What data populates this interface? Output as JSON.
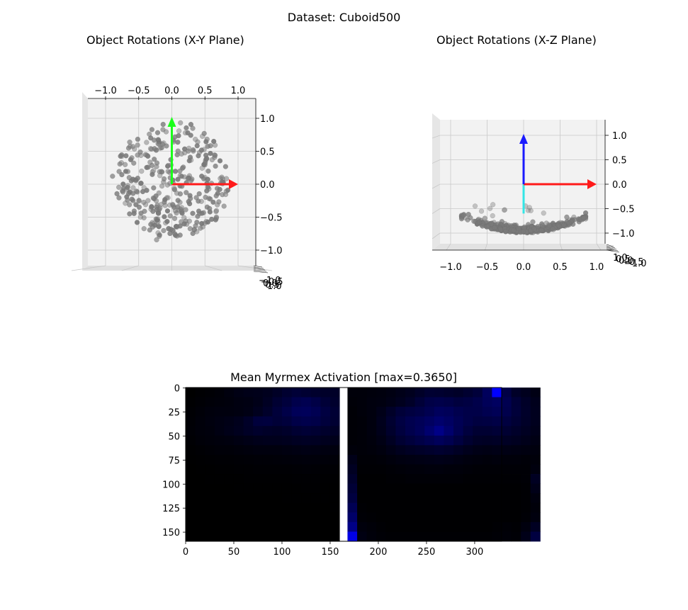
{
  "suptitle": "Dataset: Cuboid500",
  "chart_data": [
    {
      "type": "scatter",
      "title": "Object Rotations (X-Y Plane)",
      "projection": "3d",
      "view": "top (x-y)",
      "x_ticks": [
        "−1.0",
        "−0.5",
        "0.0",
        "0.5",
        "1.0"
      ],
      "y_ticks": [
        "1.0",
        "0.5",
        "0.0",
        "−0.5",
        "−1.0"
      ],
      "z_ticks": [
        "−1.0",
        "−0.5",
        "0.0",
        "0.5",
        "1.0"
      ],
      "xlim": [
        -1.25,
        1.25
      ],
      "ylim": [
        -1.25,
        1.25
      ],
      "point_color": "#7a7a7a",
      "distribution": "rotation endpoints on upper hemisphere, roughly uniform disk of radius 0.85",
      "n_points": 500,
      "arrows": [
        {
          "axis": "x",
          "color": "#ff1a1a",
          "dx": 1.0,
          "dy": 0.0
        },
        {
          "axis": "y",
          "color": "#1aff1a",
          "dx": 0.0,
          "dy": 1.0
        }
      ],
      "grid": true
    },
    {
      "type": "scatter",
      "title": "Object Rotations (X-Z Plane)",
      "projection": "3d",
      "view": "front (x-z)",
      "x_ticks": [
        "−1.0",
        "−0.5",
        "0.0",
        "0.5",
        "1.0"
      ],
      "z_ticks": [
        "1.0",
        "0.5",
        "0.0",
        "−0.5",
        "−1.0"
      ],
      "y_ticks": [
        "1.0",
        "0.5",
        "0.0",
        "−0.5",
        "−1.0"
      ],
      "xlim": [
        -1.25,
        1.25
      ],
      "zlim": [
        -1.25,
        1.25
      ],
      "point_color": "#7a7a7a",
      "distribution": "points clustered along bowl curve z ≈ -1 + 0.3·x² near the bottom",
      "arrows": [
        {
          "axis": "x",
          "color": "#ff1a1a",
          "dx": 1.0,
          "dz": 0.0
        },
        {
          "axis": "z",
          "color": "#1a1aff",
          "dx": 0.0,
          "dz": 1.0
        },
        {
          "axis": "mean",
          "color": "#33e6e6",
          "dx": 0.0,
          "dz": -0.6
        }
      ],
      "grid": true
    },
    {
      "type": "heatmap",
      "title": "Mean Myrmex Activation [max=0.3650]",
      "max": 0.365,
      "colormap": "black-to-blue",
      "x_ticks": [
        0,
        50,
        100,
        150,
        200,
        250,
        300
      ],
      "y_ticks": [
        0,
        25,
        50,
        75,
        100,
        125,
        150
      ],
      "width": 328,
      "height": 160,
      "cell_size": 10,
      "divider_columns": [
        160,
        168
      ],
      "divider_color": "#ffffff",
      "left_sensor_grid_8bit": [
        [
          0,
          3,
          5,
          8,
          14,
          20,
          24,
          26,
          30,
          38,
          48,
          55,
          50,
          45,
          42,
          40
        ],
        [
          2,
          5,
          8,
          10,
          12,
          16,
          18,
          24,
          35,
          50,
          60,
          75,
          80,
          70,
          55,
          45
        ],
        [
          4,
          8,
          12,
          14,
          14,
          16,
          20,
          30,
          42,
          58,
          72,
          88,
          90,
          82,
          65,
          52
        ],
        [
          5,
          10,
          14,
          18,
          22,
          28,
          40,
          60,
          62,
          55,
          60,
          72,
          76,
          72,
          60,
          50
        ],
        [
          6,
          10,
          12,
          18,
          24,
          30,
          38,
          44,
          40,
          38,
          42,
          50,
          54,
          50,
          44,
          38
        ],
        [
          4,
          8,
          10,
          12,
          14,
          18,
          22,
          26,
          28,
          28,
          30,
          34,
          36,
          34,
          30,
          26
        ],
        [
          2,
          4,
          6,
          8,
          8,
          10,
          12,
          14,
          14,
          14,
          16,
          18,
          20,
          18,
          16,
          14
        ],
        [
          1,
          2,
          3,
          4,
          4,
          5,
          6,
          7,
          7,
          8,
          9,
          10,
          11,
          10,
          9,
          8
        ],
        [
          0,
          1,
          1,
          2,
          2,
          3,
          3,
          4,
          4,
          4,
          4,
          5,
          6,
          5,
          4,
          4
        ],
        [
          0,
          0,
          1,
          1,
          1,
          1,
          2,
          2,
          2,
          2,
          2,
          3,
          3,
          3,
          2,
          2
        ],
        [
          0,
          0,
          0,
          0,
          0,
          1,
          1,
          1,
          1,
          1,
          1,
          1,
          2,
          2,
          1,
          1
        ],
        [
          0,
          0,
          0,
          0,
          0,
          0,
          0,
          0,
          0,
          0,
          1,
          1,
          1,
          1,
          1,
          1
        ],
        [
          0,
          0,
          0,
          0,
          0,
          0,
          0,
          0,
          0,
          0,
          0,
          0,
          0,
          0,
          0,
          1
        ],
        [
          0,
          0,
          0,
          0,
          0,
          0,
          0,
          0,
          0,
          0,
          0,
          0,
          0,
          0,
          0,
          0
        ],
        [
          0,
          0,
          0,
          0,
          0,
          0,
          0,
          0,
          0,
          0,
          0,
          0,
          0,
          0,
          0,
          0
        ],
        [
          0,
          0,
          0,
          0,
          0,
          0,
          0,
          0,
          0,
          0,
          0,
          0,
          0,
          0,
          0,
          0
        ]
      ],
      "right_sensor_grid_8bit": [
        [
          10,
          10,
          12,
          14,
          18,
          24,
          30,
          40,
          50,
          48,
          44,
          40,
          48,
          58,
          92,
          255,
          70,
          40,
          30,
          20
        ],
        [
          8,
          10,
          14,
          16,
          22,
          30,
          40,
          56,
          70,
          74,
          70,
          62,
          66,
          74,
          88,
          96,
          80,
          56,
          40,
          28
        ],
        [
          6,
          10,
          14,
          24,
          40,
          56,
          64,
          70,
          80,
          92,
          88,
          78,
          72,
          72,
          80,
          86,
          76,
          58,
          42,
          30
        ],
        [
          6,
          8,
          14,
          28,
          48,
          66,
          78,
          86,
          96,
          108,
          98,
          84,
          72,
          64,
          66,
          70,
          64,
          52,
          40,
          30
        ],
        [
          6,
          8,
          14,
          26,
          44,
          62,
          76,
          88,
          110,
          134,
          108,
          82,
          62,
          50,
          50,
          54,
          50,
          42,
          34,
          26
        ],
        [
          6,
          8,
          12,
          20,
          34,
          50,
          60,
          70,
          80,
          90,
          80,
          64,
          48,
          38,
          36,
          38,
          36,
          32,
          26,
          20
        ],
        [
          10,
          8,
          10,
          14,
          22,
          30,
          36,
          40,
          44,
          48,
          44,
          36,
          28,
          22,
          20,
          22,
          20,
          18,
          16,
          14
        ],
        [
          24,
          6,
          6,
          8,
          12,
          16,
          18,
          20,
          22,
          24,
          22,
          18,
          14,
          12,
          10,
          12,
          10,
          10,
          8,
          10
        ],
        [
          34,
          4,
          4,
          4,
          6,
          8,
          10,
          10,
          12,
          12,
          10,
          10,
          8,
          6,
          6,
          6,
          6,
          6,
          6,
          14
        ],
        [
          44,
          2,
          2,
          2,
          4,
          4,
          6,
          6,
          6,
          6,
          6,
          6,
          4,
          4,
          4,
          4,
          4,
          4,
          6,
          34
        ],
        [
          54,
          2,
          2,
          2,
          2,
          2,
          2,
          2,
          2,
          2,
          2,
          2,
          2,
          2,
          2,
          2,
          2,
          2,
          4,
          24
        ],
        [
          64,
          2,
          2,
          2,
          2,
          2,
          2,
          2,
          2,
          2,
          2,
          2,
          2,
          2,
          2,
          2,
          2,
          2,
          4,
          14
        ],
        [
          84,
          4,
          2,
          2,
          2,
          2,
          2,
          2,
          2,
          2,
          2,
          2,
          2,
          2,
          2,
          2,
          2,
          2,
          4,
          10
        ],
        [
          104,
          6,
          4,
          2,
          2,
          2,
          2,
          2,
          2,
          2,
          2,
          2,
          2,
          2,
          2,
          2,
          2,
          2,
          6,
          14
        ],
        [
          134,
          12,
          8,
          4,
          2,
          2,
          2,
          2,
          2,
          2,
          2,
          2,
          2,
          2,
          2,
          4,
          6,
          4,
          14,
          34
        ],
        [
          230,
          18,
          10,
          6,
          4,
          4,
          4,
          4,
          4,
          4,
          4,
          4,
          4,
          4,
          4,
          6,
          8,
          6,
          24,
          64
        ]
      ]
    }
  ]
}
